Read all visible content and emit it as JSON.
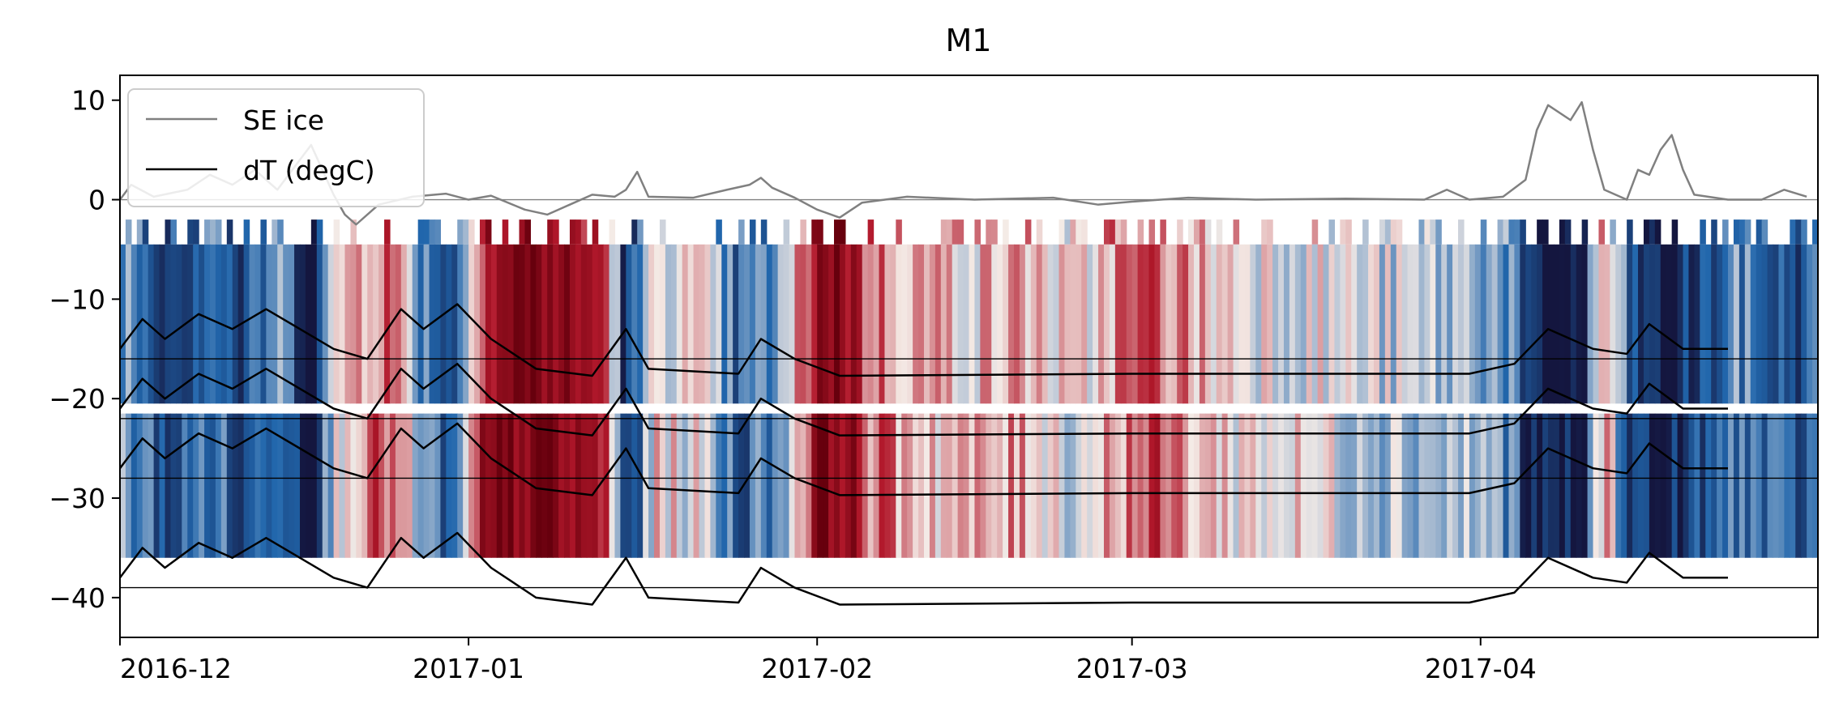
{
  "chart_data": {
    "type": "line",
    "title": "M1",
    "xlabel": "",
    "ylabel": "",
    "x_range": [
      "2016-12-01",
      "2017-04-30"
    ],
    "ylim": [
      -44,
      12.5
    ],
    "x_ticks": [
      {
        "label": "2016-12",
        "date": "2016-12-01"
      },
      {
        "label": "2017-01",
        "date": "2017-01-01"
      },
      {
        "label": "2017-02",
        "date": "2017-02-01"
      },
      {
        "label": "2017-03",
        "date": "2017-03-01"
      },
      {
        "label": "2017-04",
        "date": "2017-04-01"
      }
    ],
    "y_ticks": [
      10,
      0,
      -10,
      -20,
      -30,
      -40
    ],
    "grid": false,
    "legend": {
      "position": "upper-left",
      "entries": [
        {
          "label": "SE ice",
          "color": "#808080"
        },
        {
          "label": "dT (degC)",
          "color": "#000000"
        }
      ]
    },
    "reference_lines": [
      0,
      -16,
      -22,
      -28,
      -39
    ],
    "heatmap": {
      "colormap": "diverging red-white-blue",
      "colors": {
        "hot": "#67000d",
        "warm": "#b2182b",
        "mid": "#f4ebe6",
        "cool": "#2166ac",
        "cold": "#14163f"
      },
      "bands": [
        {
          "top": -2,
          "bottom": -4.5,
          "sparse": true
        },
        {
          "top": -4.5,
          "bottom": -20.5
        },
        {
          "top": -21.5,
          "bottom": -36
        }
      ],
      "anomaly_series": [
        {
          "date": "2016-12-01",
          "value": -0.2
        },
        {
          "date": "2016-12-03",
          "value": -0.5
        },
        {
          "date": "2016-12-06",
          "value": -0.7
        },
        {
          "date": "2016-12-09",
          "value": -0.4
        },
        {
          "date": "2016-12-12",
          "value": -0.8
        },
        {
          "date": "2016-12-15",
          "value": -0.3
        },
        {
          "date": "2016-12-18",
          "value": -0.9
        },
        {
          "date": "2016-12-21",
          "value": 0.2
        },
        {
          "date": "2016-12-25",
          "value": 0.4
        },
        {
          "date": "2016-12-28",
          "value": -0.4
        },
        {
          "date": "2016-12-31",
          "value": -0.7
        },
        {
          "date": "2017-01-02",
          "value": 0.6
        },
        {
          "date": "2017-01-05",
          "value": 0.85
        },
        {
          "date": "2017-01-07",
          "value": 0.9
        },
        {
          "date": "2017-01-10",
          "value": 0.7
        },
        {
          "date": "2017-01-13",
          "value": 0.6
        },
        {
          "date": "2017-01-15",
          "value": -0.9
        },
        {
          "date": "2017-01-18",
          "value": 0.1
        },
        {
          "date": "2017-01-22",
          "value": -0.1
        },
        {
          "date": "2017-01-25",
          "value": -0.6
        },
        {
          "date": "2017-01-29",
          "value": -0.3
        },
        {
          "date": "2017-02-01",
          "value": 0.8
        },
        {
          "date": "2017-02-03",
          "value": 0.9
        },
        {
          "date": "2017-02-06",
          "value": 0.3
        },
        {
          "date": "2017-02-10",
          "value": 0.2
        },
        {
          "date": "2017-02-15",
          "value": 0.1
        },
        {
          "date": "2017-02-20",
          "value": 0.2
        },
        {
          "date": "2017-02-24",
          "value": -0.1
        },
        {
          "date": "2017-02-28",
          "value": 0.3
        },
        {
          "date": "2017-03-03",
          "value": 0.4
        },
        {
          "date": "2017-03-08",
          "value": 0.1
        },
        {
          "date": "2017-03-15",
          "value": 0.0
        },
        {
          "date": "2017-03-22",
          "value": -0.1
        },
        {
          "date": "2017-03-27",
          "value": -0.2
        },
        {
          "date": "2017-04-01",
          "value": -0.2
        },
        {
          "date": "2017-04-04",
          "value": -0.4
        },
        {
          "date": "2017-04-05",
          "value": -1.0
        },
        {
          "date": "2017-04-10",
          "value": -1.0
        },
        {
          "date": "2017-04-12",
          "value": 0.3
        },
        {
          "date": "2017-04-14",
          "value": -0.6
        },
        {
          "date": "2017-04-17",
          "value": -1.0
        },
        {
          "date": "2017-04-21",
          "value": -0.7
        },
        {
          "date": "2017-04-24",
          "value": -0.4
        },
        {
          "date": "2017-04-28",
          "value": -0.7
        },
        {
          "date": "2017-04-30",
          "value": -0.6
        }
      ]
    },
    "series": [
      {
        "name": "SE ice",
        "color": "#808080",
        "points": [
          {
            "x": "2016-12-01",
            "y": 0.0
          },
          {
            "x": "2016-12-02",
            "y": 1.5
          },
          {
            "x": "2016-12-04",
            "y": 0.3
          },
          {
            "x": "2016-12-07",
            "y": 1.0
          },
          {
            "x": "2016-12-09",
            "y": 2.5
          },
          {
            "x": "2016-12-11",
            "y": 1.5
          },
          {
            "x": "2016-12-13",
            "y": 3.0
          },
          {
            "x": "2016-12-15",
            "y": 1.0
          },
          {
            "x": "2016-12-17",
            "y": 4.0
          },
          {
            "x": "2016-12-18",
            "y": 5.5
          },
          {
            "x": "2016-12-19",
            "y": 3.0
          },
          {
            "x": "2016-12-20",
            "y": 0.5
          },
          {
            "x": "2016-12-21",
            "y": -1.5
          },
          {
            "x": "2016-12-22",
            "y": -2.5
          },
          {
            "x": "2016-12-24",
            "y": -0.5
          },
          {
            "x": "2016-12-27",
            "y": 0.3
          },
          {
            "x": "2016-12-30",
            "y": 0.6
          },
          {
            "x": "2017-01-01",
            "y": 0.0
          },
          {
            "x": "2017-01-03",
            "y": 0.4
          },
          {
            "x": "2017-01-06",
            "y": -1.0
          },
          {
            "x": "2017-01-08",
            "y": -1.5
          },
          {
            "x": "2017-01-10",
            "y": -0.5
          },
          {
            "x": "2017-01-12",
            "y": 0.5
          },
          {
            "x": "2017-01-14",
            "y": 0.3
          },
          {
            "x": "2017-01-15",
            "y": 1.0
          },
          {
            "x": "2017-01-16",
            "y": 2.8
          },
          {
            "x": "2017-01-17",
            "y": 0.3
          },
          {
            "x": "2017-01-21",
            "y": 0.2
          },
          {
            "x": "2017-01-24",
            "y": 1.0
          },
          {
            "x": "2017-01-26",
            "y": 1.5
          },
          {
            "x": "2017-01-27",
            "y": 2.2
          },
          {
            "x": "2017-01-28",
            "y": 1.2
          },
          {
            "x": "2017-01-30",
            "y": 0.2
          },
          {
            "x": "2017-02-01",
            "y": -1.0
          },
          {
            "x": "2017-02-03",
            "y": -1.8
          },
          {
            "x": "2017-02-05",
            "y": -0.3
          },
          {
            "x": "2017-02-09",
            "y": 0.3
          },
          {
            "x": "2017-02-15",
            "y": 0.0
          },
          {
            "x": "2017-02-22",
            "y": 0.2
          },
          {
            "x": "2017-02-26",
            "y": -0.5
          },
          {
            "x": "2017-03-01",
            "y": -0.2
          },
          {
            "x": "2017-03-06",
            "y": 0.2
          },
          {
            "x": "2017-03-12",
            "y": 0.0
          },
          {
            "x": "2017-03-20",
            "y": 0.1
          },
          {
            "x": "2017-03-27",
            "y": 0.0
          },
          {
            "x": "2017-03-29",
            "y": 1.0
          },
          {
            "x": "2017-03-31",
            "y": 0.0
          },
          {
            "x": "2017-04-03",
            "y": 0.3
          },
          {
            "x": "2017-04-05",
            "y": 2.0
          },
          {
            "x": "2017-04-06",
            "y": 7.0
          },
          {
            "x": "2017-04-07",
            "y": 9.5
          },
          {
            "x": "2017-04-09",
            "y": 8.0
          },
          {
            "x": "2017-04-10",
            "y": 9.8
          },
          {
            "x": "2017-04-11",
            "y": 5.0
          },
          {
            "x": "2017-04-12",
            "y": 1.0
          },
          {
            "x": "2017-04-14",
            "y": 0.0
          },
          {
            "x": "2017-04-15",
            "y": 3.0
          },
          {
            "x": "2017-04-16",
            "y": 2.5
          },
          {
            "x": "2017-04-17",
            "y": 5.0
          },
          {
            "x": "2017-04-18",
            "y": 6.5
          },
          {
            "x": "2017-04-19",
            "y": 3.0
          },
          {
            "x": "2017-04-20",
            "y": 0.5
          },
          {
            "x": "2017-04-23",
            "y": 0.0
          },
          {
            "x": "2017-04-26",
            "y": 0.0
          },
          {
            "x": "2017-04-28",
            "y": 1.0
          },
          {
            "x": "2017-04-30",
            "y": 0.3
          }
        ]
      },
      {
        "name": "dT (degC)",
        "color": "#000000",
        "points": [
          {
            "x": "2016-12-01",
            "y": -15
          },
          {
            "x": "2016-12-03",
            "y": -12
          },
          {
            "x": "2016-12-05",
            "y": -14
          },
          {
            "x": "2016-12-08",
            "y": -11.5
          },
          {
            "x": "2016-12-11",
            "y": -13
          },
          {
            "x": "2016-12-14",
            "y": -11
          },
          {
            "x": "2016-12-17",
            "y": -13
          },
          {
            "x": "2016-12-20",
            "y": -15
          },
          {
            "x": "2016-12-23",
            "y": -16
          },
          {
            "x": "2016-12-26",
            "y": -11
          },
          {
            "x": "2016-12-28",
            "y": -13
          },
          {
            "x": "2016-12-31",
            "y": -10.5
          },
          {
            "x": "2017-01-03",
            "y": -14
          },
          {
            "x": "2017-01-07",
            "y": -17
          },
          {
            "x": "2017-01-12",
            "y": -17.7
          },
          {
            "x": "2017-01-15",
            "y": -13
          },
          {
            "x": "2017-01-17",
            "y": -17
          },
          {
            "x": "2017-01-25",
            "y": -17.5
          },
          {
            "x": "2017-01-27",
            "y": -14
          },
          {
            "x": "2017-01-30",
            "y": -16
          },
          {
            "x": "2017-02-03",
            "y": -17.7
          },
          {
            "x": "2017-03-01",
            "y": -17.5
          },
          {
            "x": "2017-03-31",
            "y": -17.5
          },
          {
            "x": "2017-04-04",
            "y": -16.5
          },
          {
            "x": "2017-04-07",
            "y": -13
          },
          {
            "x": "2017-04-11",
            "y": -15
          },
          {
            "x": "2017-04-14",
            "y": -15.5
          },
          {
            "x": "2017-04-16",
            "y": -12.5
          },
          {
            "x": "2017-04-19",
            "y": -15
          },
          {
            "x": "2017-04-23",
            "y": -15
          }
        ]
      }
    ]
  }
}
